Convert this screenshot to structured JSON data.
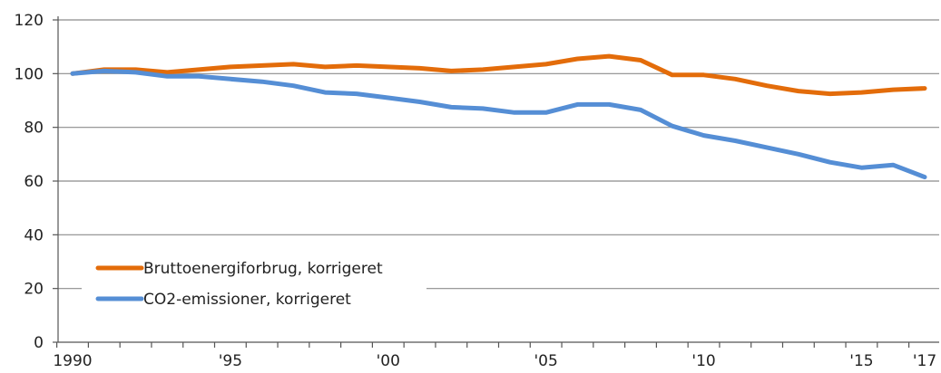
{
  "chart_data": {
    "type": "line",
    "x": [
      1990,
      1991,
      1992,
      1993,
      1994,
      1995,
      1996,
      1997,
      1998,
      1999,
      2000,
      2001,
      2002,
      2003,
      2004,
      2005,
      2006,
      2007,
      2008,
      2009,
      2010,
      2011,
      2012,
      2013,
      2014,
      2015,
      2016,
      2017
    ],
    "x_tick_values": [
      1990,
      1995,
      2000,
      2005,
      2010,
      2015,
      2017
    ],
    "x_tick_labels": [
      "1990",
      "'95",
      "'00",
      "'05",
      "'10",
      "'15",
      "'17"
    ],
    "ylim": [
      0,
      120
    ],
    "y_ticks": [
      0,
      20,
      40,
      60,
      80,
      100,
      120
    ],
    "y_tick_labels": [
      "0",
      "20",
      "40",
      "60",
      "80",
      "100",
      "120"
    ],
    "grid": "horizontal",
    "legend_position": "bottom-left",
    "series": [
      {
        "name": "Bruttoenergiforbrug, korrigeret",
        "color": "#E36C0A",
        "values": [
          100,
          101.5,
          101.5,
          100.5,
          101.5,
          102.5,
          103,
          103.5,
          102.5,
          103,
          102.5,
          102,
          101,
          101.5,
          102.5,
          103.5,
          105.5,
          106.5,
          105,
          99.5,
          99.5,
          98,
          95.5,
          93.5,
          92.5,
          93,
          94,
          94.5
        ]
      },
      {
        "name": "CO2-emissioner, korrigeret",
        "color": "#558ED5",
        "values": [
          100,
          101,
          100.5,
          99,
          99,
          98,
          97,
          95.5,
          93,
          92.5,
          91,
          89.5,
          87.5,
          87,
          85.5,
          85.5,
          88.5,
          88.5,
          86.5,
          80.5,
          77,
          75,
          72.5,
          70,
          67,
          65,
          66,
          61.5
        ]
      }
    ]
  }
}
